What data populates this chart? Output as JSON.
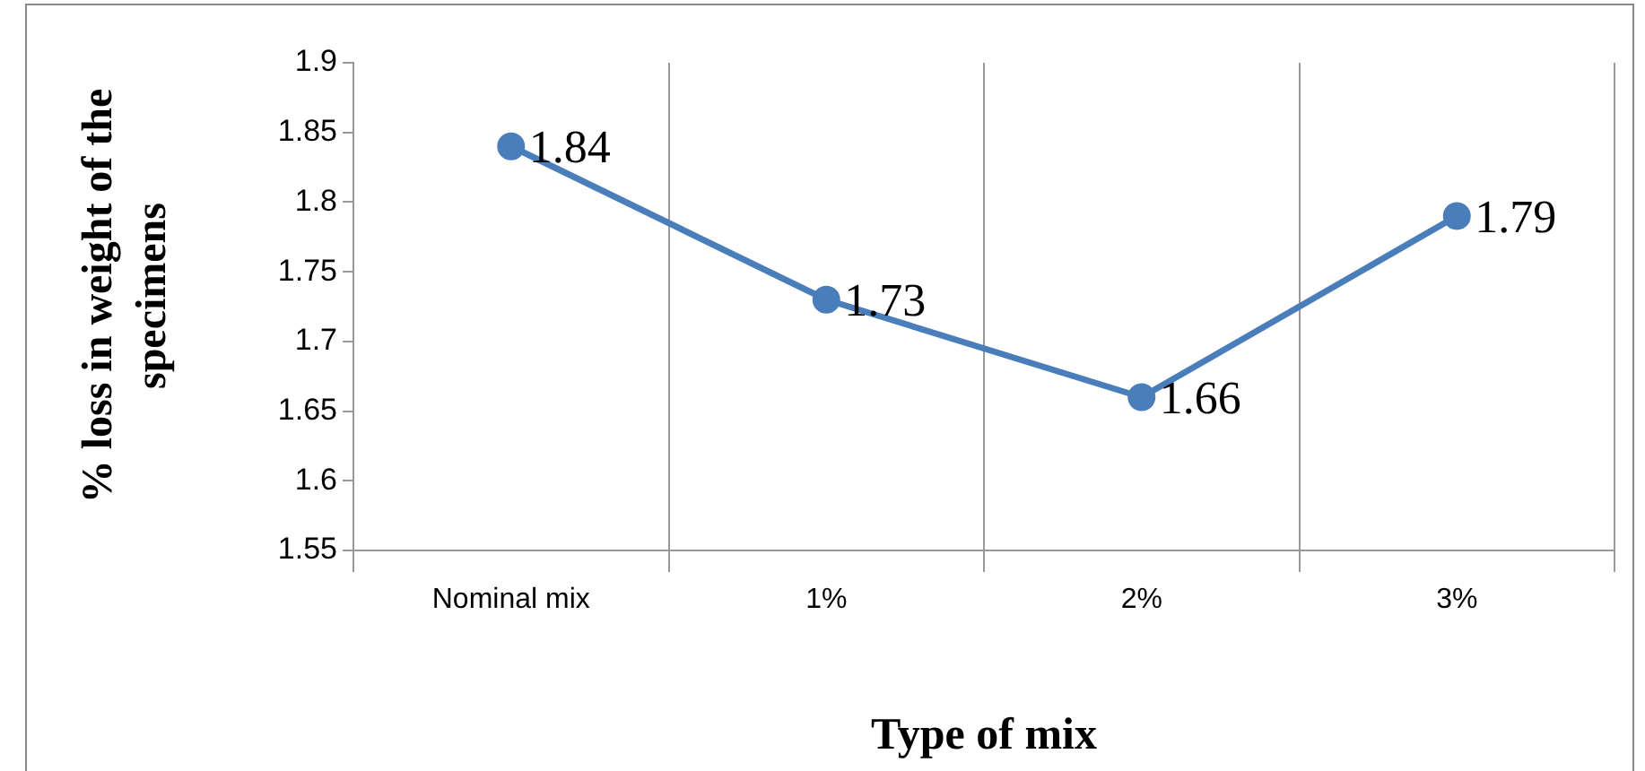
{
  "chart_data": {
    "type": "line",
    "xlabel": "Type of mix",
    "ylabel": "% loss in weight of the specimens",
    "categories": [
      "Nominal mix",
      "1%",
      "2%",
      "3%"
    ],
    "series": [
      {
        "color": "#4a7ebb",
        "values": [
          1.84,
          1.73,
          1.66,
          1.79
        ]
      }
    ],
    "ylim": [
      1.55,
      1.9
    ],
    "yticks": [
      1.55,
      1.6,
      1.65,
      1.7,
      1.75,
      1.8,
      1.85,
      1.9
    ],
    "grid": "x",
    "legend": false,
    "marker": "circle",
    "line_style": "solid",
    "data_labels": true
  }
}
